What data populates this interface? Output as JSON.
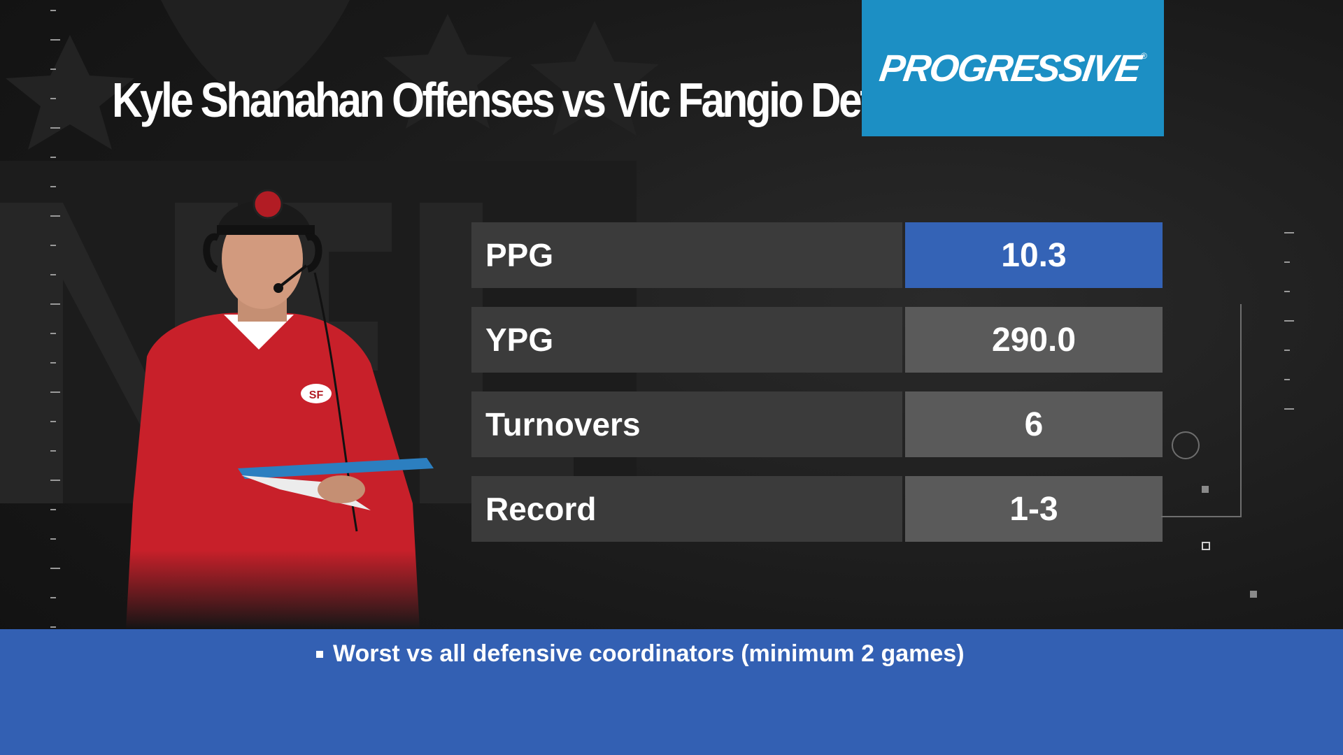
{
  "title": "Kyle Shanahan Offenses vs Vic Fangio Defenses",
  "sponsor": {
    "text": "PROGRESSIVE",
    "reg_mark": "®",
    "color": "#1c8fc4"
  },
  "coach_photo": {
    "subject": "coach",
    "team_logo_text": "SF"
  },
  "stats": [
    {
      "label": "PPG",
      "value": "10.3",
      "highlight": true
    },
    {
      "label": "YPG",
      "value": "290.0",
      "highlight": false
    },
    {
      "label": "Turnovers",
      "value": "6",
      "highlight": false
    },
    {
      "label": "Record",
      "value": "1-3",
      "highlight": false
    }
  ],
  "footer": {
    "note": "Worst vs all defensive coordinators (minimum 2 games)"
  },
  "colors": {
    "highlight": "#3463b6",
    "footer": "#3360b3",
    "label_bg": "#3b3b3b",
    "value_bg": "#5a5a5a"
  }
}
